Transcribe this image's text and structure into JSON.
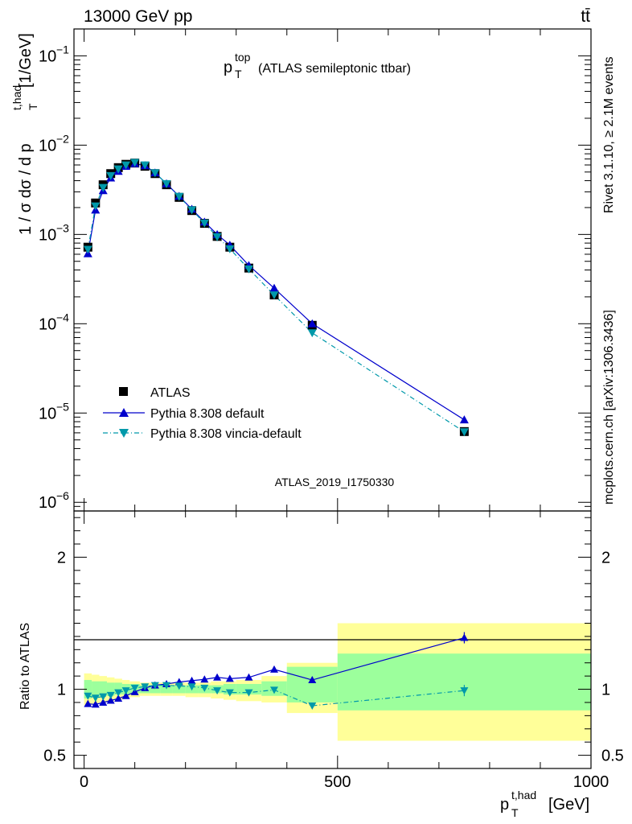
{
  "header": {
    "left_label": "13000 GeV pp",
    "right_label": "tt̄"
  },
  "side_labels": {
    "rivet": "Rivet 3.1.10, ≥ 2.1M events",
    "mcplots": "mcplots.cern.ch [arXiv:1306.3436]"
  },
  "chart_data": {
    "type": "line",
    "title_main": "p",
    "title_sup": "top",
    "title_sub": "T",
    "title_rest": "(ATLAS semileptonic ttbar)",
    "analysis_label": "ATLAS_2019_I1750330",
    "x_axis": {
      "label_main": "p",
      "label_sup": "t,had",
      "label_sub": "T",
      "label_unit": "[GeV]",
      "range": [
        -20,
        1000
      ],
      "ticks": [
        0,
        500,
        1000
      ],
      "tick_labels": [
        "0",
        "500",
        "1000"
      ]
    },
    "main_panel": {
      "ylabel_prefix": "1 / σ dσ / d p",
      "ylabel_sup": "t,had",
      "ylabel_sub": "T",
      "ylabel_unit": "[1/GeV]",
      "yscale": "log",
      "ylim": [
        8e-07,
        0.2
      ],
      "ytick_exponents": [
        -6,
        -5,
        -4,
        -3,
        -2,
        -1
      ],
      "ytick_base": "10"
    },
    "ratio_panel": {
      "ylabel": "Ratio to ATLAS",
      "ylim": [
        0.4,
        2.35
      ],
      "ticks": [
        0.5,
        1,
        2
      ],
      "tick_labels": [
        "0.5",
        "1",
        "2"
      ]
    },
    "legend": [
      {
        "name": "ATLAS",
        "marker": "square",
        "color": "#000000"
      },
      {
        "name": "Pythia 8.308 default",
        "marker": "triangle-up",
        "color": "#0000cc"
      },
      {
        "name": "Pythia 8.308 vincia-default",
        "marker": "triangle-down",
        "color": "#0099aa"
      }
    ],
    "bins": [
      {
        "lo": 0,
        "hi": 15,
        "x": 7.5,
        "y": 0.00072,
        "default": 0.00061,
        "vincia": 0.00068,
        "band_in": [
          0.93,
          1.07
        ],
        "band_out": [
          0.88,
          1.12
        ]
      },
      {
        "lo": 15,
        "hi": 30,
        "x": 22.5,
        "y": 0.00225,
        "default": 0.00188,
        "vincia": 0.00208,
        "band_in": [
          0.94,
          1.06
        ],
        "band_out": [
          0.89,
          1.11
        ]
      },
      {
        "lo": 30,
        "hi": 45,
        "x": 37.5,
        "y": 0.0036,
        "default": 0.0031,
        "vincia": 0.00335,
        "band_in": [
          0.95,
          1.06
        ],
        "band_out": [
          0.9,
          1.1
        ]
      },
      {
        "lo": 45,
        "hi": 60,
        "x": 52.5,
        "y": 0.0048,
        "default": 0.0043,
        "vincia": 0.00455,
        "band_in": [
          0.95,
          1.05
        ],
        "band_out": [
          0.91,
          1.09
        ]
      },
      {
        "lo": 60,
        "hi": 75,
        "x": 67.5,
        "y": 0.0056,
        "default": 0.0051,
        "vincia": 0.0054,
        "band_in": [
          0.96,
          1.05
        ],
        "band_out": [
          0.92,
          1.08
        ]
      },
      {
        "lo": 75,
        "hi": 90,
        "x": 82.5,
        "y": 0.0061,
        "default": 0.0058,
        "vincia": 0.006,
        "band_in": [
          0.96,
          1.04
        ],
        "band_out": [
          0.93,
          1.07
        ]
      },
      {
        "lo": 90,
        "hi": 110,
        "x": 100,
        "y": 0.0063,
        "default": 0.0062,
        "vincia": 0.0064,
        "band_in": [
          0.97,
          1.04
        ],
        "band_out": [
          0.94,
          1.06
        ]
      },
      {
        "lo": 110,
        "hi": 130,
        "x": 120,
        "y": 0.0058,
        "default": 0.0059,
        "vincia": 0.006,
        "band_in": [
          0.97,
          1.03
        ],
        "band_out": [
          0.95,
          1.05
        ]
      },
      {
        "lo": 130,
        "hi": 150,
        "x": 140,
        "y": 0.0048,
        "default": 0.0049,
        "vincia": 0.0049,
        "band_in": [
          0.97,
          1.03
        ],
        "band_out": [
          0.95,
          1.05
        ]
      },
      {
        "lo": 150,
        "hi": 175,
        "x": 162.5,
        "y": 0.0036,
        "default": 0.0037,
        "vincia": 0.0037,
        "band_in": [
          0.97,
          1.03
        ],
        "band_out": [
          0.95,
          1.05
        ]
      },
      {
        "lo": 175,
        "hi": 200,
        "x": 187.5,
        "y": 0.0026,
        "default": 0.00268,
        "vincia": 0.00266,
        "band_in": [
          0.97,
          1.03
        ],
        "band_out": [
          0.95,
          1.05
        ]
      },
      {
        "lo": 200,
        "hi": 225,
        "x": 212.5,
        "y": 0.00185,
        "default": 0.00192,
        "vincia": 0.00188,
        "band_in": [
          0.97,
          1.03
        ],
        "band_out": [
          0.94,
          1.05
        ]
      },
      {
        "lo": 225,
        "hi": 250,
        "x": 237.5,
        "y": 0.00133,
        "default": 0.00138,
        "vincia": 0.00134,
        "band_in": [
          0.97,
          1.03
        ],
        "band_out": [
          0.94,
          1.05
        ]
      },
      {
        "lo": 250,
        "hi": 275,
        "x": 262.5,
        "y": 0.00095,
        "default": 0.001,
        "vincia": 0.00094,
        "band_in": [
          0.97,
          1.03
        ],
        "band_out": [
          0.93,
          1.06
        ]
      },
      {
        "lo": 275,
        "hi": 300,
        "x": 287.5,
        "y": 0.00072,
        "default": 0.00076,
        "vincia": 0.00069,
        "band_in": [
          0.96,
          1.04
        ],
        "band_out": [
          0.92,
          1.06
        ]
      },
      {
        "lo": 300,
        "hi": 350,
        "x": 325,
        "y": 0.00042,
        "default": 0.00045,
        "vincia": 0.00041,
        "band_in": [
          0.96,
          1.04
        ],
        "band_out": [
          0.91,
          1.07
        ]
      },
      {
        "lo": 350,
        "hi": 400,
        "x": 375,
        "y": 0.00021,
        "default": 0.00025,
        "vincia": 0.00021,
        "band_in": [
          0.95,
          1.06
        ],
        "band_out": [
          0.9,
          1.1
        ]
      },
      {
        "lo": 400,
        "hi": 500,
        "x": 450,
        "y": 9.6e-05,
        "default": 0.0001,
        "vincia": 7.9e-05,
        "band_in": [
          0.9,
          1.17
        ],
        "band_out": [
          0.82,
          1.2
        ]
      },
      {
        "lo": 500,
        "hi": 1000,
        "x": 750,
        "y": 6.2e-06,
        "default": 8.4e-06,
        "vincia": 6.15e-06,
        "band_in": [
          0.84,
          1.27
        ],
        "band_out": [
          0.61,
          1.5
        ]
      }
    ],
    "ratio_default": [
      0.89,
      0.885,
      0.9,
      0.915,
      0.93,
      0.95,
      0.98,
      1.01,
      1.03,
      1.04,
      1.055,
      1.065,
      1.075,
      1.09,
      1.08,
      1.09,
      1.15,
      1.07,
      1.39
    ],
    "ratio_vincia": [
      0.95,
      0.935,
      0.945,
      0.955,
      0.975,
      0.99,
      1.01,
      1.02,
      1.03,
      1.03,
      1.025,
      1.02,
      1.01,
      0.99,
      0.975,
      0.975,
      0.995,
      0.875,
      0.99
    ]
  },
  "colors": {
    "band_inner": "#9cff9c",
    "band_outer": "#ffff99",
    "data": "#000000",
    "default": "#0000cc",
    "vincia": "#0099aa",
    "analysis_label": "#9a9a9a",
    "side_label": "#808080"
  }
}
